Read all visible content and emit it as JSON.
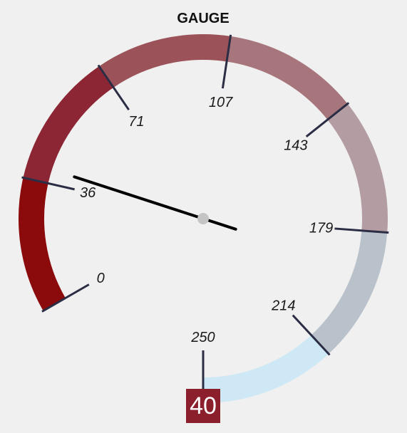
{
  "chart_data": {
    "type": "gauge",
    "title": "GAUGE",
    "min": 0,
    "max": 250,
    "value": 40,
    "value_display": "40",
    "tick_labels": [
      "0",
      "36",
      "71",
      "107",
      "143",
      "179",
      "214",
      "250"
    ],
    "tick_values": [
      0,
      35.7,
      71.4,
      107.1,
      142.9,
      178.6,
      214.3,
      250
    ],
    "bands": [
      {
        "from": 0,
        "to": 35.7,
        "color": "#8b0a0c"
      },
      {
        "from": 35.7,
        "to": 71.4,
        "color": "#8d2634"
      },
      {
        "from": 71.4,
        "to": 107.1,
        "color": "#9b5258"
      },
      {
        "from": 107.1,
        "to": 142.9,
        "color": "#a7767c"
      },
      {
        "from": 142.9,
        "to": 178.6,
        "color": "#b39ca2"
      },
      {
        "from": 178.6,
        "to": 214.3,
        "color": "#b9c1cb"
      },
      {
        "from": 214.3,
        "to": 250,
        "color": "#cfe8f5"
      }
    ],
    "colors": {
      "tick": "#2b2d45",
      "needle": "#000000",
      "hub": "#c4c4c4",
      "value_box": "#8b1f2b"
    }
  }
}
